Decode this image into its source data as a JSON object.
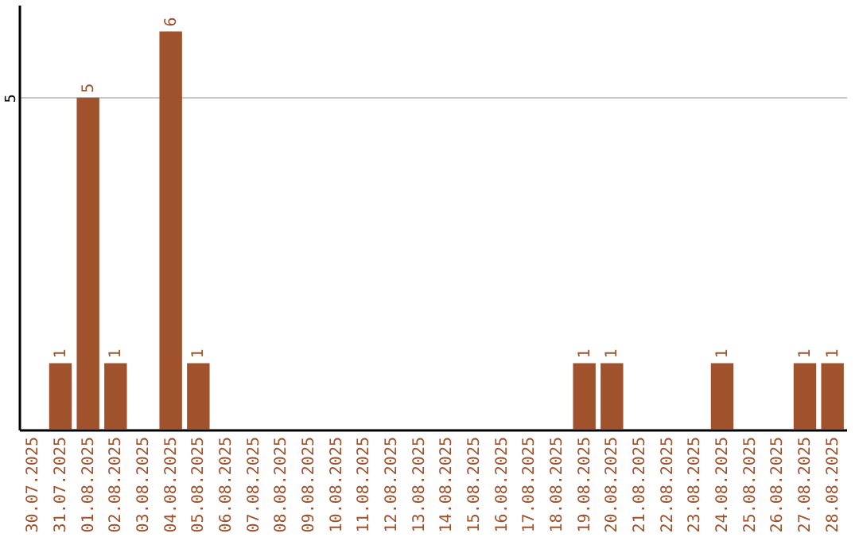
{
  "chart_data": {
    "type": "bar",
    "categories": [
      "30.07.2025",
      "31.07.2025",
      "01.08.2025",
      "02.08.2025",
      "03.08.2025",
      "04.08.2025",
      "05.08.2025",
      "06.08.2025",
      "07.08.2025",
      "08.08.2025",
      "09.08.2025",
      "10.08.2025",
      "11.08.2025",
      "12.08.2025",
      "13.08.2025",
      "14.08.2025",
      "15.08.2025",
      "16.08.2025",
      "17.08.2025",
      "18.08.2025",
      "19.08.2025",
      "20.08.2025",
      "21.08.2025",
      "22.08.2025",
      "23.08.2025",
      "24.08.2025",
      "25.08.2025",
      "26.08.2025",
      "27.08.2025",
      "28.08.2025"
    ],
    "values": [
      0,
      1,
      5,
      1,
      0,
      6,
      1,
      0,
      0,
      0,
      0,
      0,
      0,
      0,
      0,
      0,
      0,
      0,
      0,
      0,
      1,
      1,
      0,
      0,
      0,
      1,
      0,
      0,
      1,
      1
    ],
    "value_labels": [
      null,
      "1",
      "5",
      "1",
      null,
      "6",
      "1",
      null,
      null,
      null,
      null,
      null,
      null,
      null,
      null,
      null,
      null,
      null,
      null,
      null,
      "1",
      "1",
      null,
      null,
      null,
      "1",
      null,
      null,
      "1",
      "1"
    ],
    "color": "#a0522d",
    "ylim": [
      0,
      6.4
    ],
    "yticks": [
      5
    ],
    "grid": "y"
  }
}
